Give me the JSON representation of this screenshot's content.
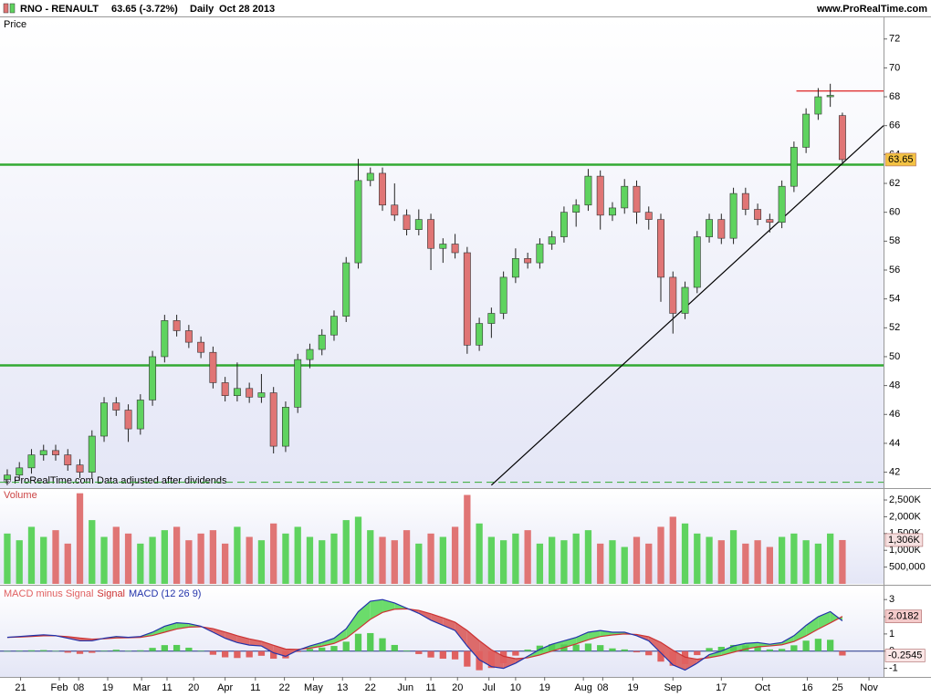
{
  "header": {
    "symbol": "RNO - RENAULT",
    "quote": "63.65 (-3.72%)",
    "period": "Daily",
    "date": "Oct 28 2013",
    "site": "www.ProRealTime.com"
  },
  "chart_data": [
    {
      "type": "candlestick",
      "title": "Price",
      "copyright": "© ProRealTime.com",
      "note": "Data adjusted after dividends",
      "colors": {
        "up": "#5fd35f",
        "down": "#e07575",
        "wick": "#222222"
      },
      "ohlc": [
        [
          41.5,
          42.2,
          41.1,
          41.8
        ],
        [
          41.8,
          42.7,
          41.4,
          42.3
        ],
        [
          42.3,
          43.6,
          41.9,
          43.2
        ],
        [
          43.2,
          43.9,
          42.8,
          43.5
        ],
        [
          43.5,
          43.9,
          42.8,
          43.2
        ],
        [
          43.2,
          43.6,
          42.1,
          42.5
        ],
        [
          42.5,
          42.9,
          41.6,
          42.0
        ],
        [
          42.0,
          44.9,
          41.6,
          44.5
        ],
        [
          44.5,
          47.2,
          44.1,
          46.8
        ],
        [
          46.8,
          47.2,
          45.9,
          46.3
        ],
        [
          46.3,
          46.7,
          44.1,
          45.0
        ],
        [
          45.0,
          47.4,
          44.6,
          47.0
        ],
        [
          47.0,
          50.4,
          46.6,
          50.0
        ],
        [
          50.0,
          52.9,
          49.6,
          52.5
        ],
        [
          52.5,
          52.9,
          51.4,
          51.8
        ],
        [
          51.8,
          52.2,
          50.6,
          51.0
        ],
        [
          51.0,
          51.4,
          49.9,
          50.3
        ],
        [
          50.3,
          50.7,
          47.8,
          48.2
        ],
        [
          48.2,
          48.6,
          46.9,
          47.3
        ],
        [
          47.3,
          49.6,
          46.9,
          47.8
        ],
        [
          47.8,
          48.2,
          46.8,
          47.2
        ],
        [
          47.2,
          48.8,
          46.8,
          47.5
        ],
        [
          47.5,
          47.9,
          43.3,
          43.8
        ],
        [
          43.8,
          46.9,
          43.4,
          46.5
        ],
        [
          46.5,
          50.2,
          46.1,
          49.8
        ],
        [
          49.8,
          50.9,
          49.2,
          50.5
        ],
        [
          50.5,
          51.9,
          50.1,
          51.5
        ],
        [
          51.5,
          53.2,
          51.1,
          52.8
        ],
        [
          52.8,
          56.9,
          52.4,
          56.5
        ],
        [
          56.5,
          63.7,
          56.1,
          62.2
        ],
        [
          62.2,
          63.1,
          61.8,
          62.7
        ],
        [
          62.7,
          63.1,
          60.1,
          60.5
        ],
        [
          60.5,
          62.0,
          59.4,
          59.8
        ],
        [
          59.8,
          60.2,
          58.4,
          58.8
        ],
        [
          58.8,
          60.2,
          58.4,
          59.5
        ],
        [
          59.5,
          59.9,
          56.0,
          57.5
        ],
        [
          57.5,
          58.2,
          56.5,
          57.8
        ],
        [
          57.8,
          58.5,
          56.8,
          57.2
        ],
        [
          57.2,
          57.6,
          50.2,
          50.8
        ],
        [
          50.8,
          52.7,
          50.4,
          52.3
        ],
        [
          52.3,
          53.4,
          51.3,
          53.0
        ],
        [
          53.0,
          55.9,
          52.6,
          55.5
        ],
        [
          55.5,
          57.5,
          55.1,
          56.8
        ],
        [
          56.8,
          57.2,
          56.1,
          56.5
        ],
        [
          56.5,
          58.2,
          56.1,
          57.8
        ],
        [
          57.8,
          58.7,
          57.4,
          58.3
        ],
        [
          58.3,
          60.4,
          57.9,
          60.0
        ],
        [
          60.0,
          60.9,
          59.0,
          60.5
        ],
        [
          60.5,
          63.0,
          60.1,
          62.5
        ],
        [
          62.5,
          62.9,
          58.8,
          59.8
        ],
        [
          59.8,
          60.7,
          59.4,
          60.3
        ],
        [
          60.3,
          62.3,
          59.9,
          61.8
        ],
        [
          61.8,
          62.2,
          59.2,
          60.0
        ],
        [
          60.0,
          60.4,
          58.8,
          59.5
        ],
        [
          59.5,
          59.9,
          53.8,
          55.5
        ],
        [
          55.5,
          55.9,
          51.6,
          53.0
        ],
        [
          53.0,
          55.2,
          52.6,
          54.8
        ],
        [
          54.8,
          58.7,
          54.4,
          58.3
        ],
        [
          58.3,
          59.9,
          57.9,
          59.5
        ],
        [
          59.5,
          59.9,
          57.8,
          58.2
        ],
        [
          58.2,
          61.7,
          57.8,
          61.3
        ],
        [
          61.3,
          61.7,
          59.8,
          60.2
        ],
        [
          60.2,
          60.6,
          59.1,
          59.5
        ],
        [
          59.5,
          59.9,
          58.6,
          59.3
        ],
        [
          59.3,
          62.2,
          58.9,
          61.8
        ],
        [
          61.8,
          64.9,
          61.4,
          64.5
        ],
        [
          64.5,
          67.2,
          64.1,
          66.8
        ],
        [
          66.8,
          68.6,
          66.4,
          68.0
        ],
        [
          68.0,
          68.9,
          67.3,
          68.1
        ],
        [
          66.7,
          66.9,
          63.3,
          63.65
        ]
      ],
      "ylim": [
        40.9,
        73.5
      ],
      "yticks": [
        42,
        44,
        46,
        48,
        50,
        52,
        54,
        56,
        58,
        60,
        62,
        64,
        66,
        68,
        70,
        72
      ],
      "xlim": [
        -0.6,
        72.4
      ],
      "xticks": [
        {
          "value": 1.1,
          "label": "21"
        },
        {
          "value": 4.3,
          "label": "Feb"
        },
        {
          "value": 5.9,
          "label": "08"
        },
        {
          "value": 8.3,
          "label": "19"
        },
        {
          "value": 11.1,
          "label": "Mar"
        },
        {
          "value": 13.2,
          "label": "11"
        },
        {
          "value": 15.4,
          "label": "20"
        },
        {
          "value": 18.0,
          "label": "Apr"
        },
        {
          "value": 20.5,
          "label": "11"
        },
        {
          "value": 22.9,
          "label": "22"
        },
        {
          "value": 25.3,
          "label": "May"
        },
        {
          "value": 27.7,
          "label": "13"
        },
        {
          "value": 30.0,
          "label": "22"
        },
        {
          "value": 32.9,
          "label": "Jun"
        },
        {
          "value": 35.0,
          "label": "11"
        },
        {
          "value": 37.2,
          "label": "20"
        },
        {
          "value": 39.8,
          "label": "Jul"
        },
        {
          "value": 42.0,
          "label": "10"
        },
        {
          "value": 44.4,
          "label": "19"
        },
        {
          "value": 47.6,
          "label": "Aug"
        },
        {
          "value": 49.2,
          "label": "08"
        },
        {
          "value": 51.7,
          "label": "19"
        },
        {
          "value": 55.0,
          "label": "Sep"
        },
        {
          "value": 59.0,
          "label": "17"
        },
        {
          "value": 62.4,
          "label": "Oct"
        },
        {
          "value": 66.1,
          "label": "16"
        },
        {
          "value": 68.6,
          "label": "25"
        },
        {
          "value": 71.2,
          "label": "Nov"
        }
      ],
      "hlines": [
        {
          "value": 63.3,
          "color": "#33aa33",
          "style": "solid"
        },
        {
          "value": 49.4,
          "color": "#33aa33",
          "style": "solid"
        },
        {
          "value": 41.3,
          "color": "#33aa33",
          "style": "dashed"
        }
      ],
      "resistance": {
        "value": 68.4,
        "x": [
          65.2,
          72.4
        ],
        "color": "#dd2222"
      },
      "trendline": {
        "x": [
          40.0,
          72.4
        ],
        "y": [
          41.1,
          66.0
        ],
        "color": "#000000"
      }
    },
    {
      "type": "volume",
      "title": "Volume",
      "last_label": "1,306K",
      "values": [
        1500000,
        1300000,
        1700000,
        1400000,
        1600000,
        1200000,
        2700000,
        1900000,
        1400000,
        1700000,
        1500000,
        1200000,
        1400000,
        1600000,
        1700000,
        1300000,
        1500000,
        1600000,
        1200000,
        1700000,
        1400000,
        1300000,
        1800000,
        1500000,
        1700000,
        1400000,
        1300000,
        1500000,
        1900000,
        2000000,
        1600000,
        1400000,
        1300000,
        1600000,
        1200000,
        1500000,
        1400000,
        1700000,
        2650000,
        1800000,
        1400000,
        1300000,
        1500000,
        1600000,
        1200000,
        1400000,
        1300000,
        1500000,
        1600000,
        1200000,
        1300000,
        1100000,
        1400000,
        1200000,
        1700000,
        2000000,
        1800000,
        1500000,
        1400000,
        1300000,
        1600000,
        1200000,
        1300000,
        1100000,
        1400000,
        1500000,
        1300000,
        1200000,
        1500000,
        1306000
      ],
      "ylim": [
        0,
        2800000
      ],
      "yticks": [
        {
          "value": 500000,
          "label": "500,000"
        },
        {
          "value": 1000000,
          "label": "1,000K"
        },
        {
          "value": 1500000,
          "label": "1,500K"
        },
        {
          "value": 2000000,
          "label": "2,000K"
        },
        {
          "value": 2500000,
          "label": "2,500K"
        }
      ]
    },
    {
      "type": "macd",
      "ylim": [
        -1.5,
        3.7
      ],
      "yticks": [
        3,
        2,
        1,
        0,
        -1
      ],
      "fill_colors": {
        "above": "#6bdc6b",
        "below": "#dc6b6b"
      },
      "series": [
        {
          "name": "MACD minus Signal",
          "color": "#e06060",
          "up_color": "#55cc55",
          "values": [
            0,
            0.03,
            0.05,
            0.06,
            0.01,
            -0.09,
            -0.16,
            -0.1,
            0.03,
            0.08,
            0.02,
            0.05,
            0.19,
            0.35,
            0.36,
            0.2,
            0.03,
            -0.21,
            -0.36,
            -0.4,
            -0.36,
            -0.27,
            -0.44,
            -0.42,
            -0.05,
            0.13,
            0.21,
            0.3,
            0.55,
            1.01,
            1.05,
            0.75,
            0.36,
            0.04,
            -0.17,
            -0.37,
            -0.44,
            -0.48,
            -0.9,
            -1.11,
            -0.98,
            -0.7,
            -0.26,
            0.09,
            0.32,
            0.4,
            0.39,
            0.38,
            0.44,
            0.35,
            0.16,
            0.1,
            -0.07,
            -0.24,
            -0.61,
            -0.85,
            -0.75,
            -0.23,
            0.18,
            0.25,
            0.36,
            0.33,
            0.25,
            0.1,
            0.13,
            0.34,
            0.61,
            0.72,
            0.66,
            -0.2545
          ]
        },
        {
          "name": "Signal",
          "color": "#cc3333",
          "values": [
            0.8,
            0.82,
            0.85,
            0.89,
            0.89,
            0.84,
            0.76,
            0.7,
            0.72,
            0.77,
            0.78,
            0.8,
            0.91,
            1.1,
            1.29,
            1.4,
            1.42,
            1.31,
            1.11,
            0.9,
            0.71,
            0.57,
            0.34,
            0.12,
            0.1,
            0.17,
            0.29,
            0.45,
            0.75,
            1.29,
            1.85,
            2.25,
            2.44,
            2.46,
            2.37,
            2.17,
            1.94,
            1.68,
            1.2,
            0.61,
            0.08,
            -0.3,
            -0.44,
            -0.39,
            -0.22,
            0.0,
            0.21,
            0.42,
            0.66,
            0.85,
            0.94,
            1.0,
            0.97,
            0.84,
            0.51,
            0.05,
            -0.35,
            -0.47,
            -0.38,
            -0.25,
            -0.06,
            0.12,
            0.25,
            0.3,
            0.37,
            0.56,
            0.89,
            1.28,
            1.64,
            2.0182
          ]
        },
        {
          "name": "MACD (12 26 9)",
          "color": "#2233aa",
          "values": [
            0.8,
            0.85,
            0.9,
            0.95,
            0.9,
            0.75,
            0.6,
            0.6,
            0.75,
            0.85,
            0.8,
            0.85,
            1.1,
            1.45,
            1.65,
            1.6,
            1.45,
            1.1,
            0.75,
            0.5,
            0.35,
            0.3,
            -0.1,
            -0.3,
            0.05,
            0.3,
            0.5,
            0.75,
            1.3,
            2.3,
            2.9,
            3.0,
            2.8,
            2.5,
            2.2,
            1.8,
            1.5,
            1.2,
            0.3,
            -0.5,
            -0.9,
            -1.0,
            -0.7,
            -0.3,
            0.1,
            0.4,
            0.6,
            0.8,
            1.1,
            1.2,
            1.1,
            1.1,
            0.9,
            0.6,
            -0.1,
            -0.8,
            -1.1,
            -0.7,
            -0.2,
            0.0,
            0.3,
            0.45,
            0.5,
            0.4,
            0.5,
            0.9,
            1.5,
            2.0,
            2.3,
            1.7637
          ]
        }
      ]
    }
  ]
}
